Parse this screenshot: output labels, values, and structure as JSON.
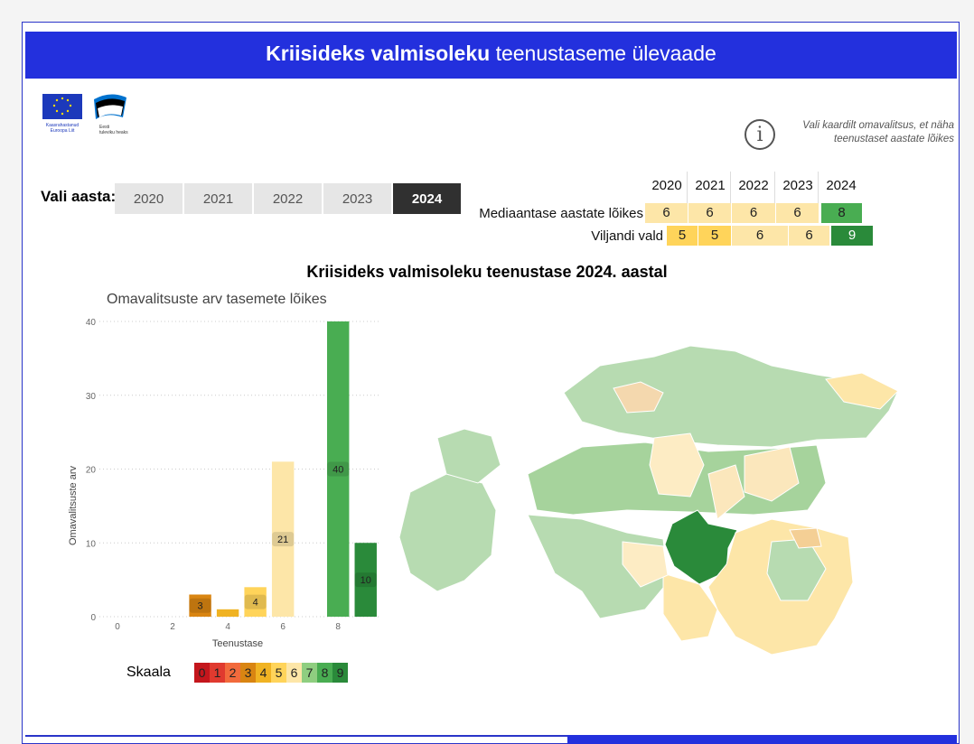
{
  "title": {
    "bold": "Kriisideks valmisoleku",
    "rest": " teenustaseme ülevaade"
  },
  "logos": {
    "eu_text": "Kaasrahastanud Euroopa Liit",
    "ee_text": "Eesti tuleviku heaks"
  },
  "info": {
    "icon": "info-icon",
    "text": "Vali kaardilt omavalitsus, et näha teenustaset aastate lõikes"
  },
  "year_selector": {
    "label": "Vali aasta:",
    "years": [
      "2020",
      "2021",
      "2022",
      "2023",
      "2024"
    ],
    "selected": "2024"
  },
  "year_table": {
    "columns": [
      "2020",
      "2021",
      "2022",
      "2023",
      "2024"
    ],
    "rows": [
      {
        "label": "Mediaantase aastate lõikes",
        "values": [
          6,
          6,
          6,
          6,
          8
        ]
      },
      {
        "label": "Viljandi vald",
        "values": [
          5,
          5,
          6,
          6,
          9
        ]
      }
    ]
  },
  "main_title": "Kriisideks valmisoleku teenustase 2024. aastal",
  "bar_chart_title": "Omavalitsuste arv tasemete lõikes",
  "chart_data": {
    "type": "bar",
    "xlabel": "Teenustase",
    "ylabel": "Omavalitsuste arv",
    "x": [
      3,
      4,
      5,
      6,
      8,
      9
    ],
    "values": [
      3,
      1,
      4,
      21,
      40,
      10
    ],
    "data_labels": [
      "3",
      "",
      "4",
      "21",
      "40",
      "10"
    ],
    "xlim": [
      0,
      9.5
    ],
    "ylim": [
      0,
      40
    ],
    "x_ticks": [
      0,
      2,
      4,
      6,
      8
    ],
    "y_ticks": [
      0,
      10,
      20,
      30,
      40
    ],
    "grid": true
  },
  "scale": {
    "label": "Skaala",
    "values": [
      "0",
      "1",
      "2",
      "3",
      "4",
      "5",
      "6",
      "7",
      "8",
      "9"
    ]
  },
  "colors": {
    "header": "#2330dd",
    "levels": [
      "#c4161c",
      "#e03a2f",
      "#f26a3c",
      "#d98512",
      "#f0b323",
      "#ffd45a",
      "#fde6a8",
      "#8fce80",
      "#49ad52",
      "#2a8a3a"
    ],
    "selected_region": "#2a8a3a"
  }
}
